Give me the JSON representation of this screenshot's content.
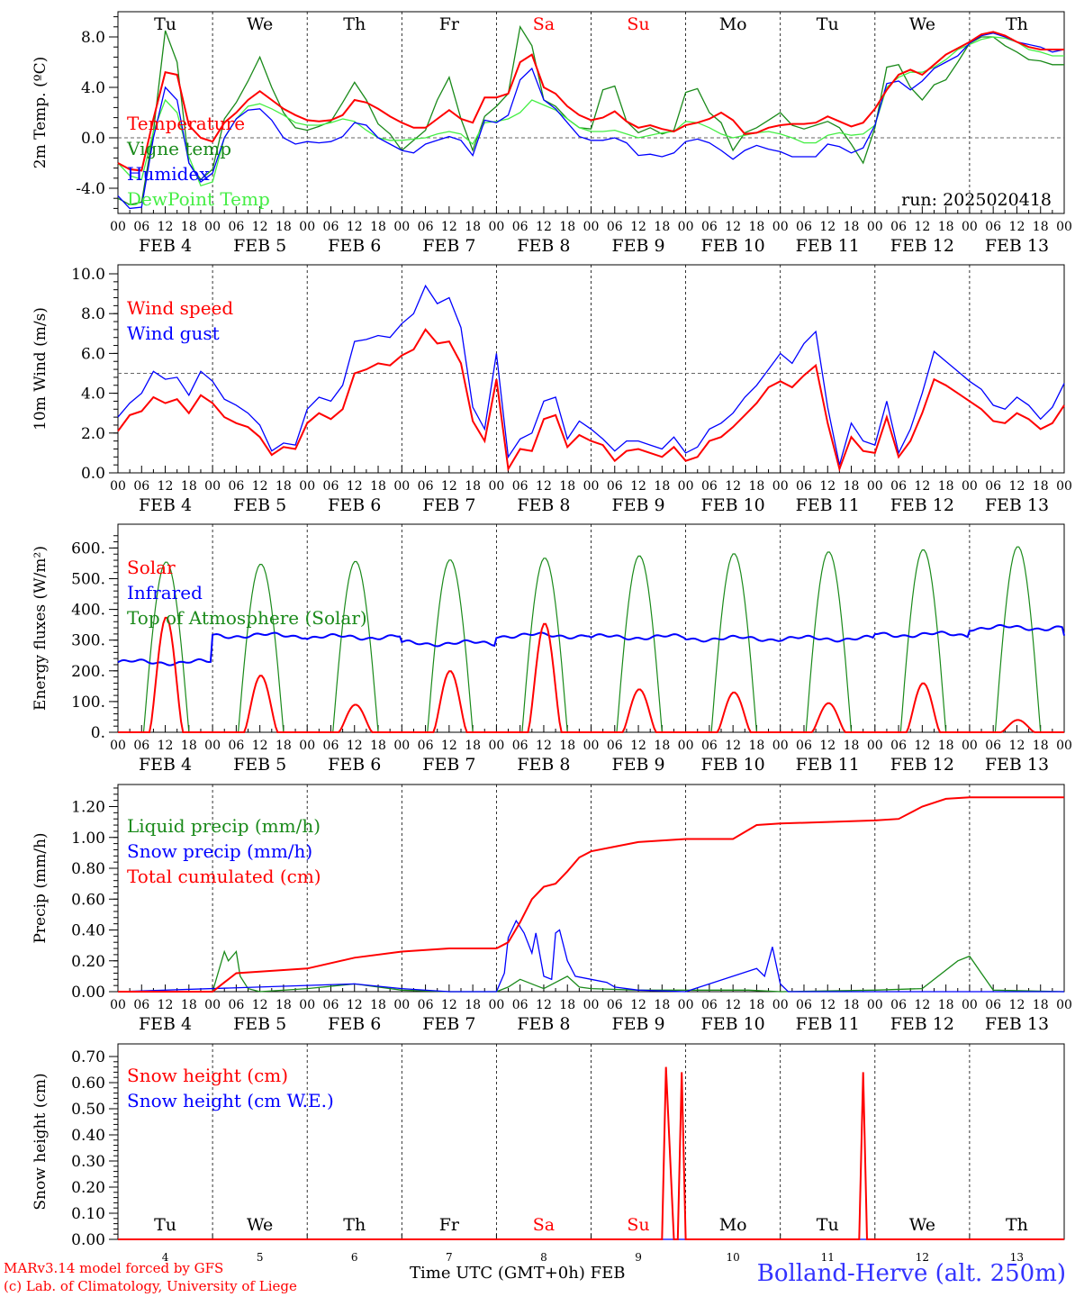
{
  "colors": {
    "red": "#ff0000",
    "green": "#1a8a1a",
    "blue": "#0000ff",
    "lightgreen": "#44ee44",
    "black": "#000000",
    "grey": "#666666"
  },
  "footer": {
    "credit_line1": "MARv3.14 model forced by GFS",
    "credit_line2": "(c) Lab. of Climatology, University of Liege",
    "xlabel": "Time UTC (GMT+0h) FEB",
    "station": "Bolland-Herve (alt. 250m)"
  },
  "chart_data": [
    {
      "type": "line",
      "title": "",
      "ylabel": "2m Temp. (ºC)",
      "ylim": [
        -6.4,
        10.0
      ],
      "y_ticks": [
        "8.0",
        "4.0",
        "0.0",
        "-4.0"
      ],
      "x_hours": [
        "00",
        "06",
        "12",
        "18"
      ],
      "days": [
        "FEB 4",
        "FEB 5",
        "FEB 6",
        "FEB 7",
        "FEB 8",
        "FEB 9",
        "FEB 10",
        "FEB 11",
        "FEB 12",
        "FEB 13"
      ],
      "weekdays": [
        "Tu",
        "We",
        "Th",
        "Fr",
        "Sa",
        "Su",
        "Mo",
        "Tu",
        "We",
        "Th"
      ],
      "weekend": [
        "Sa",
        "Su"
      ],
      "annotation": "run: 2025020418",
      "reference_line": 0.0,
      "x": [
        0,
        3,
        6,
        9,
        12,
        15,
        18,
        21,
        24,
        27,
        30,
        33,
        36,
        39,
        42,
        45,
        48,
        51,
        54,
        57,
        60,
        63,
        66,
        69,
        72,
        75,
        78,
        81,
        84,
        87,
        90,
        93,
        96,
        99,
        102,
        105,
        108,
        111,
        114,
        117,
        120,
        123,
        126,
        129,
        132,
        135,
        138,
        141,
        144,
        147,
        150,
        153,
        156,
        159,
        162,
        165,
        168,
        171,
        174,
        177,
        180,
        183,
        186,
        189,
        192,
        195,
        198,
        201,
        204,
        207,
        210,
        213,
        216,
        219,
        222,
        225,
        228,
        231,
        234,
        237,
        240
      ],
      "series": [
        {
          "name": "Temperature",
          "color": "red",
          "values": [
            -2.0,
            -2.5,
            -2.6,
            1.5,
            5.2,
            5.0,
            1.0,
            0.0,
            -0.3,
            1.2,
            2.0,
            3.0,
            3.7,
            3.0,
            2.3,
            1.8,
            1.4,
            1.3,
            1.4,
            1.8,
            3.0,
            2.8,
            2.3,
            1.7,
            1.2,
            0.8,
            0.8,
            1.5,
            2.2,
            1.5,
            1.2,
            3.2,
            3.2,
            3.5,
            6.0,
            6.6,
            4.0,
            3.5,
            2.5,
            1.8,
            1.4,
            1.6,
            2.1,
            1.3,
            0.8,
            1.0,
            0.7,
            0.5,
            1.0,
            1.2,
            1.5,
            2.0,
            1.4,
            0.3,
            0.4,
            0.8,
            1.0,
            1.1,
            1.1,
            1.2,
            1.7,
            1.3,
            0.9,
            1.2,
            2.3,
            3.8,
            5.0,
            5.4,
            5.0,
            5.8,
            6.6,
            7.1,
            7.6,
            8.2,
            8.4,
            8.1,
            7.6,
            7.2,
            7.0,
            7.0,
            7.0
          ]
        },
        {
          "name": "Vigne temp",
          "color": "green",
          "values": [
            -4.8,
            -5.3,
            -5.1,
            0.5,
            8.5,
            6.0,
            -2.0,
            -3.3,
            -2.5,
            1.5,
            2.8,
            4.5,
            6.4,
            4.0,
            2.0,
            0.8,
            0.6,
            0.9,
            1.3,
            2.8,
            4.4,
            3.0,
            1.1,
            0.3,
            -1.0,
            -0.2,
            0.6,
            3.0,
            4.8,
            1.5,
            -1.0,
            1.7,
            2.5,
            3.5,
            8.8,
            7.3,
            3.0,
            2.5,
            1.5,
            0.8,
            0.7,
            3.8,
            4.1,
            1.3,
            0.4,
            0.8,
            0.3,
            0.6,
            3.6,
            3.9,
            2.0,
            1.2,
            -1.0,
            0.4,
            0.8,
            1.4,
            2.0,
            1.0,
            0.7,
            1.0,
            1.3,
            0.8,
            -0.5,
            -2.0,
            0.8,
            5.6,
            5.8,
            4.0,
            3.0,
            4.2,
            4.6,
            6.0,
            7.5,
            8.0,
            8.0,
            7.3,
            6.8,
            6.2,
            6.1,
            5.8,
            5.8
          ]
        },
        {
          "name": "Humidex",
          "color": "blue",
          "values": [
            -4.6,
            -5.6,
            -5.5,
            0.0,
            4.0,
            3.0,
            -2.0,
            -3.5,
            -2.8,
            0.0,
            1.5,
            2.2,
            2.3,
            1.4,
            0.0,
            -0.5,
            -0.3,
            -0.4,
            -0.3,
            0.1,
            1.2,
            1.0,
            0.0,
            -0.5,
            -1.0,
            -1.2,
            -0.5,
            -0.2,
            0.1,
            -0.2,
            -1.4,
            1.4,
            1.2,
            1.8,
            4.6,
            5.5,
            3.0,
            2.3,
            1.2,
            0.1,
            -0.2,
            -0.2,
            0.0,
            -0.4,
            -1.4,
            -1.3,
            -1.5,
            -1.2,
            -0.3,
            -0.1,
            -0.4,
            -1.0,
            -1.7,
            -1.0,
            -0.6,
            -0.9,
            -1.1,
            -1.5,
            -1.5,
            -1.5,
            -0.5,
            -0.7,
            -1.2,
            -0.8,
            1.0,
            4.3,
            4.5,
            3.8,
            4.5,
            5.5,
            6.0,
            6.5,
            7.5,
            8.1,
            8.3,
            8.0,
            7.6,
            7.4,
            7.2,
            6.8,
            7.0
          ]
        },
        {
          "name": "DewPoint Temp",
          "color": "lightgreen",
          "values": [
            -2.0,
            -3.0,
            -3.3,
            0.5,
            3.0,
            2.0,
            -1.5,
            -3.8,
            -3.5,
            0.0,
            1.5,
            2.5,
            2.7,
            2.3,
            1.8,
            1.2,
            1.0,
            1.0,
            1.2,
            1.5,
            1.3,
            0.6,
            0.0,
            -0.2,
            -0.2,
            -0.1,
            0.0,
            0.3,
            0.5,
            0.3,
            -0.5,
            1.2,
            1.3,
            1.5,
            2.0,
            3.0,
            2.6,
            2.2,
            1.5,
            0.8,
            0.5,
            0.5,
            0.6,
            0.3,
            0.0,
            0.2,
            0.4,
            0.5,
            1.3,
            1.2,
            0.8,
            0.3,
            0.0,
            0.2,
            0.4,
            0.5,
            0.3,
            0.0,
            -0.4,
            -0.4,
            0.2,
            0.4,
            0.2,
            0.3,
            1.0,
            4.0,
            4.8,
            5.2,
            5.2,
            5.6,
            6.2,
            7.0,
            7.4,
            7.8,
            8.0,
            7.9,
            7.6,
            7.0,
            6.8,
            6.5,
            6.5
          ]
        }
      ]
    },
    {
      "type": "line",
      "title": "",
      "ylabel": "10m Wind (m/s)",
      "ylim": [
        0,
        10.0
      ],
      "y_ticks": [
        "10.0",
        "8.0",
        "6.0",
        "4.0",
        "2.0",
        "0.0"
      ],
      "x_hours": [
        "00",
        "06",
        "12",
        "18"
      ],
      "days": [
        "FEB 4",
        "FEB 5",
        "FEB 6",
        "FEB 7",
        "FEB 8",
        "FEB 9",
        "FEB 10",
        "FEB 11",
        "FEB 12",
        "FEB 13"
      ],
      "reference_line": 5.0,
      "x": [
        0,
        3,
        6,
        9,
        12,
        15,
        18,
        21,
        24,
        27,
        30,
        33,
        36,
        39,
        42,
        45,
        48,
        51,
        54,
        57,
        60,
        63,
        66,
        69,
        72,
        75,
        78,
        81,
        84,
        87,
        90,
        93,
        96,
        99,
        102,
        105,
        108,
        111,
        114,
        117,
        120,
        123,
        126,
        129,
        132,
        135,
        138,
        141,
        144,
        147,
        150,
        153,
        156,
        159,
        162,
        165,
        168,
        171,
        174,
        177,
        180,
        183,
        186,
        189,
        192,
        195,
        198,
        201,
        204,
        207,
        210,
        213,
        216,
        219,
        222,
        225,
        228,
        231,
        234,
        237,
        240
      ],
      "series": [
        {
          "name": "Wind speed",
          "color": "red",
          "values": [
            2.1,
            2.9,
            3.1,
            3.8,
            3.5,
            3.7,
            3.0,
            3.9,
            3.5,
            2.8,
            2.5,
            2.3,
            1.8,
            0.9,
            1.3,
            1.2,
            2.5,
            3.0,
            2.7,
            3.2,
            5.0,
            5.2,
            5.5,
            5.4,
            5.9,
            6.2,
            7.2,
            6.5,
            6.6,
            5.5,
            2.6,
            1.6,
            4.7,
            0.2,
            1.2,
            1.1,
            2.7,
            2.9,
            1.3,
            1.9,
            1.6,
            1.4,
            0.6,
            1.1,
            1.2,
            1.0,
            0.8,
            1.3,
            0.6,
            0.8,
            1.6,
            1.8,
            2.3,
            2.9,
            3.5,
            4.3,
            4.6,
            4.3,
            4.9,
            5.4,
            2.5,
            0.2,
            1.8,
            1.1,
            1.0,
            2.8,
            0.8,
            1.6,
            3.0,
            4.7,
            4.4,
            4.0,
            3.6,
            3.2,
            2.6,
            2.5,
            3.0,
            2.7,
            2.2,
            2.5,
            3.4
          ]
        },
        {
          "name": "Wind gust",
          "color": "blue",
          "values": [
            2.8,
            3.5,
            4.0,
            5.1,
            4.7,
            4.8,
            3.9,
            5.1,
            4.6,
            3.7,
            3.4,
            3.0,
            2.4,
            1.1,
            1.5,
            1.4,
            3.2,
            3.8,
            3.6,
            4.4,
            6.6,
            6.7,
            6.9,
            6.8,
            7.5,
            8.0,
            9.4,
            8.5,
            8.8,
            7.3,
            3.3,
            2.2,
            6.0,
            0.8,
            1.7,
            2.0,
            3.6,
            3.8,
            1.7,
            2.6,
            2.2,
            1.7,
            1.1,
            1.6,
            1.6,
            1.4,
            1.2,
            1.8,
            1.0,
            1.3,
            2.2,
            2.5,
            3.0,
            3.8,
            4.4,
            5.2,
            6.0,
            5.5,
            6.5,
            7.1,
            3.3,
            0.4,
            2.5,
            1.6,
            1.4,
            3.6,
            1.0,
            2.2,
            4.0,
            6.1,
            5.6,
            5.1,
            4.6,
            4.2,
            3.4,
            3.2,
            3.8,
            3.4,
            2.7,
            3.3,
            4.5
          ]
        }
      ]
    },
    {
      "type": "line",
      "title": "",
      "ylabel": "Energy fluxes (W/m²)",
      "ylim": [
        0,
        650
      ],
      "y_ticks": [
        "600.",
        "500.",
        "400.",
        "300.",
        "200.",
        "100.",
        "0."
      ],
      "x_hours": [
        "00",
        "06",
        "12",
        "18"
      ],
      "days": [
        "FEB 4",
        "FEB 5",
        "FEB 6",
        "FEB 7",
        "FEB 8",
        "FEB 9",
        "FEB 10",
        "FEB 11",
        "FEB 12",
        "FEB 13"
      ],
      "solar_peaks": [
        375,
        185,
        90,
        200,
        355,
        140,
        130,
        95,
        160,
        40
      ],
      "toa_peaks": [
        555,
        548,
        557,
        562,
        568,
        575,
        582,
        588,
        595,
        605
      ],
      "infrared_daily": [
        228,
        315,
        310,
        290,
        315,
        310,
        305,
        305,
        318,
        340
      ],
      "series": [
        {
          "name": "Solar",
          "color": "red"
        },
        {
          "name": "Infrared",
          "color": "blue"
        },
        {
          "name": "Top of Atmosphere (Solar)",
          "color": "green"
        }
      ]
    },
    {
      "type": "line",
      "title": "",
      "ylabel": "Precip (mm/h)",
      "ylim": [
        0,
        1.36
      ],
      "y_ticks": [
        "1.20",
        "1.00",
        "0.80",
        "0.60",
        "0.40",
        "0.20",
        "0.00"
      ],
      "x_hours": [
        "00",
        "06",
        "12",
        "18"
      ],
      "days": [
        "FEB 4",
        "FEB 5",
        "FEB 6",
        "FEB 7",
        "FEB 8",
        "FEB 9",
        "FEB 10",
        "FEB 11",
        "FEB 12",
        "FEB 13"
      ],
      "series": [
        {
          "name": "Liquid precip (mm/h)",
          "color": "green",
          "x": [
            0,
            24,
            27,
            28,
            30,
            31,
            33,
            36,
            48,
            60,
            72,
            84,
            96,
            99,
            102,
            106,
            108,
            114,
            117,
            120,
            132,
            144,
            160,
            168,
            192,
            204,
            213,
            216,
            219,
            222,
            240
          ],
          "values": [
            0,
            0,
            0.26,
            0.2,
            0.26,
            0.1,
            0.02,
            0.0,
            0.02,
            0.05,
            0.01,
            0.0,
            0.0,
            0.03,
            0.08,
            0.04,
            0.02,
            0.1,
            0.03,
            0.02,
            0.01,
            0.01,
            0.01,
            0.0,
            0.01,
            0.02,
            0.2,
            0.23,
            0.12,
            0.01,
            0.0
          ]
        },
        {
          "name": "Snow precip (mm/h)",
          "color": "blue",
          "x": [
            0,
            60,
            72,
            84,
            96,
            98,
            99,
            101,
            103,
            105,
            106,
            108,
            110,
            111,
            112,
            114,
            116,
            120,
            124,
            126,
            132,
            144,
            162,
            164,
            166,
            168,
            170,
            192,
            240
          ],
          "values": [
            0,
            0.05,
            0.02,
            0.0,
            0.0,
            0.12,
            0.35,
            0.46,
            0.38,
            0.25,
            0.38,
            0.1,
            0.08,
            0.38,
            0.4,
            0.2,
            0.1,
            0.08,
            0.06,
            0.03,
            0.01,
            0.0,
            0.15,
            0.1,
            0.29,
            0.05,
            0.0,
            0.0,
            0.0
          ]
        },
        {
          "name": "Total cumulated (cm)",
          "color": "red",
          "x": [
            0,
            24,
            27,
            30,
            36,
            48,
            60,
            72,
            84,
            96,
            99,
            102,
            105,
            108,
            111,
            114,
            117,
            120,
            126,
            132,
            144,
            156,
            162,
            168,
            180,
            192,
            198,
            204,
            210,
            216,
            240
          ],
          "values": [
            0,
            0,
            0.06,
            0.12,
            0.13,
            0.15,
            0.22,
            0.26,
            0.28,
            0.28,
            0.32,
            0.45,
            0.6,
            0.68,
            0.7,
            0.78,
            0.87,
            0.91,
            0.94,
            0.97,
            0.99,
            0.99,
            1.08,
            1.09,
            1.1,
            1.11,
            1.12,
            1.2,
            1.25,
            1.26,
            1.26
          ]
        }
      ]
    },
    {
      "type": "line",
      "title": "",
      "ylabel": "Snow height (cm)",
      "ylim": [
        0,
        0.7
      ],
      "y_ticks": [
        "0.70",
        "0.60",
        "0.50",
        "0.40",
        "0.30",
        "0.20",
        "0.10",
        "0.00"
      ],
      "day_numbers": [
        "4",
        "5",
        "6",
        "7",
        "8",
        "9",
        "10",
        "11",
        "12",
        "13"
      ],
      "weekdays": [
        "Tu",
        "We",
        "Th",
        "Fr",
        "Sa",
        "Su",
        "Mo",
        "Tu",
        "We",
        "Th"
      ],
      "series": [
        {
          "name": "Snow height (cm)",
          "color": "red",
          "x": [
            0,
            138,
            139,
            141,
            142,
            143,
            144,
            188,
            189,
            190,
            240
          ],
          "values": [
            0,
            0,
            0.66,
            0,
            0,
            0.64,
            0,
            0,
            0.64,
            0,
            0
          ]
        },
        {
          "name": "Snow height (cm W.E.)",
          "color": "blue",
          "x": [
            0,
            240
          ],
          "values": [
            0,
            0
          ]
        }
      ]
    }
  ]
}
